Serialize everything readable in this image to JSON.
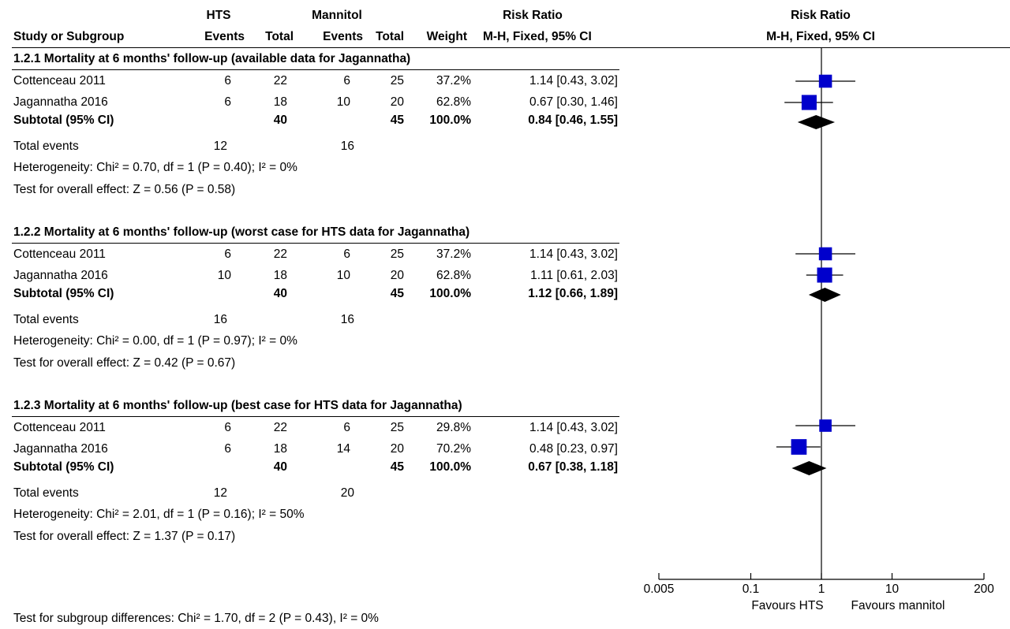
{
  "header": {
    "group1": "HTS",
    "group2": "Mannitol",
    "rr_table": "Risk Ratio",
    "rr_plot": "Risk Ratio",
    "col_study": "Study or Subgroup",
    "col_events1": "Events",
    "col_total1": "Total",
    "col_events2": "Events",
    "col_total2": "Total",
    "col_weight": "Weight",
    "col_ci_table": "M-H, Fixed, 95% CI",
    "col_ci_plot": "M-H, Fixed, 95% CI"
  },
  "subgroups": [
    {
      "title": "1.2.1 Mortality at 6 months' follow-up (available data for Jagannatha)",
      "studies": [
        {
          "name": "Cottenceau 2011",
          "e1": "6",
          "t1": "22",
          "e2": "6",
          "t2": "25",
          "weight": "37.2%",
          "ci": "1.14 [0.43, 3.02]"
        },
        {
          "name": "Jagannatha 2016",
          "e1": "6",
          "t1": "18",
          "e2": "10",
          "t2": "20",
          "weight": "62.8%",
          "ci": "0.67 [0.30, 1.46]"
        }
      ],
      "subtotal": {
        "label": "Subtotal (95% CI)",
        "t1": "40",
        "t2": "45",
        "weight": "100.0%",
        "ci": "0.84 [0.46, 1.55]"
      },
      "total_events": {
        "label": "Total events",
        "e1": "12",
        "e2": "16"
      },
      "heterogeneity": "Heterogeneity: Chi² = 0.70, df = 1 (P = 0.40); I² = 0%",
      "overall": "Test for overall effect: Z = 0.56 (P = 0.58)"
    },
    {
      "title": "1.2.2 Mortality at 6 months' follow-up (worst case for HTS data for Jagannatha)",
      "studies": [
        {
          "name": "Cottenceau 2011",
          "e1": "6",
          "t1": "22",
          "e2": "6",
          "t2": "25",
          "weight": "37.2%",
          "ci": "1.14 [0.43, 3.02]"
        },
        {
          "name": "Jagannatha 2016",
          "e1": "10",
          "t1": "18",
          "e2": "10",
          "t2": "20",
          "weight": "62.8%",
          "ci": "1.11 [0.61, 2.03]"
        }
      ],
      "subtotal": {
        "label": "Subtotal (95% CI)",
        "t1": "40",
        "t2": "45",
        "weight": "100.0%",
        "ci": "1.12 [0.66, 1.89]"
      },
      "total_events": {
        "label": "Total events",
        "e1": "16",
        "e2": "16"
      },
      "heterogeneity": "Heterogeneity: Chi² = 0.00, df = 1 (P = 0.97); I² = 0%",
      "overall": "Test for overall effect: Z = 0.42 (P = 0.67)"
    },
    {
      "title": "1.2.3 Mortality at 6 months' follow-up (best case for HTS data for Jagannatha)",
      "studies": [
        {
          "name": "Cottenceau 2011",
          "e1": "6",
          "t1": "22",
          "e2": "6",
          "t2": "25",
          "weight": "29.8%",
          "ci": "1.14 [0.43, 3.02]"
        },
        {
          "name": "Jagannatha 2016",
          "e1": "6",
          "t1": "18",
          "e2": "14",
          "t2": "20",
          "weight": "70.2%",
          "ci": "0.48 [0.23, 0.97]"
        }
      ],
      "subtotal": {
        "label": "Subtotal (95% CI)",
        "t1": "40",
        "t2": "45",
        "weight": "100.0%",
        "ci": "0.67 [0.38, 1.18]"
      },
      "total_events": {
        "label": "Total events",
        "e1": "12",
        "e2": "20"
      },
      "heterogeneity": "Heterogeneity: Chi² = 2.01, df = 1 (P = 0.16); I² = 50%",
      "overall": "Test for overall effect: Z = 1.37 (P = 0.17)"
    }
  ],
  "subgroup_differences": "Test for subgroup differences: Chi² = 1.70, df = 2 (P = 0.43), I² = 0%",
  "colors": {
    "study_marker": "#0000cc",
    "summary_diamond": "#000000",
    "lines": "#000000"
  },
  "chart_data": {
    "type": "forest",
    "scale": "log",
    "xlim": [
      0.005,
      200
    ],
    "ticks": [
      "0.005",
      "0.1",
      "1",
      "10",
      "200"
    ],
    "null_value": 1,
    "favours_left": "Favours HTS",
    "favours_right": "Favours mannitol",
    "subgroups": [
      {
        "studies": [
          {
            "name": "Cottenceau 2011",
            "rr": 1.14,
            "lo": 0.43,
            "hi": 3.02,
            "weight": 37.2
          },
          {
            "name": "Jagannatha 2016",
            "rr": 0.67,
            "lo": 0.3,
            "hi": 1.46,
            "weight": 62.8
          }
        ],
        "subtotal": {
          "rr": 0.84,
          "lo": 0.46,
          "hi": 1.55
        }
      },
      {
        "studies": [
          {
            "name": "Cottenceau 2011",
            "rr": 1.14,
            "lo": 0.43,
            "hi": 3.02,
            "weight": 37.2
          },
          {
            "name": "Jagannatha 2016",
            "rr": 1.11,
            "lo": 0.61,
            "hi": 2.03,
            "weight": 62.8
          }
        ],
        "subtotal": {
          "rr": 1.12,
          "lo": 0.66,
          "hi": 1.89
        }
      },
      {
        "studies": [
          {
            "name": "Cottenceau 2011",
            "rr": 1.14,
            "lo": 0.43,
            "hi": 3.02,
            "weight": 29.8
          },
          {
            "name": "Jagannatha 2016",
            "rr": 0.48,
            "lo": 0.23,
            "hi": 0.97,
            "weight": 70.2
          }
        ],
        "subtotal": {
          "rr": 0.67,
          "lo": 0.38,
          "hi": 1.18
        }
      }
    ]
  }
}
